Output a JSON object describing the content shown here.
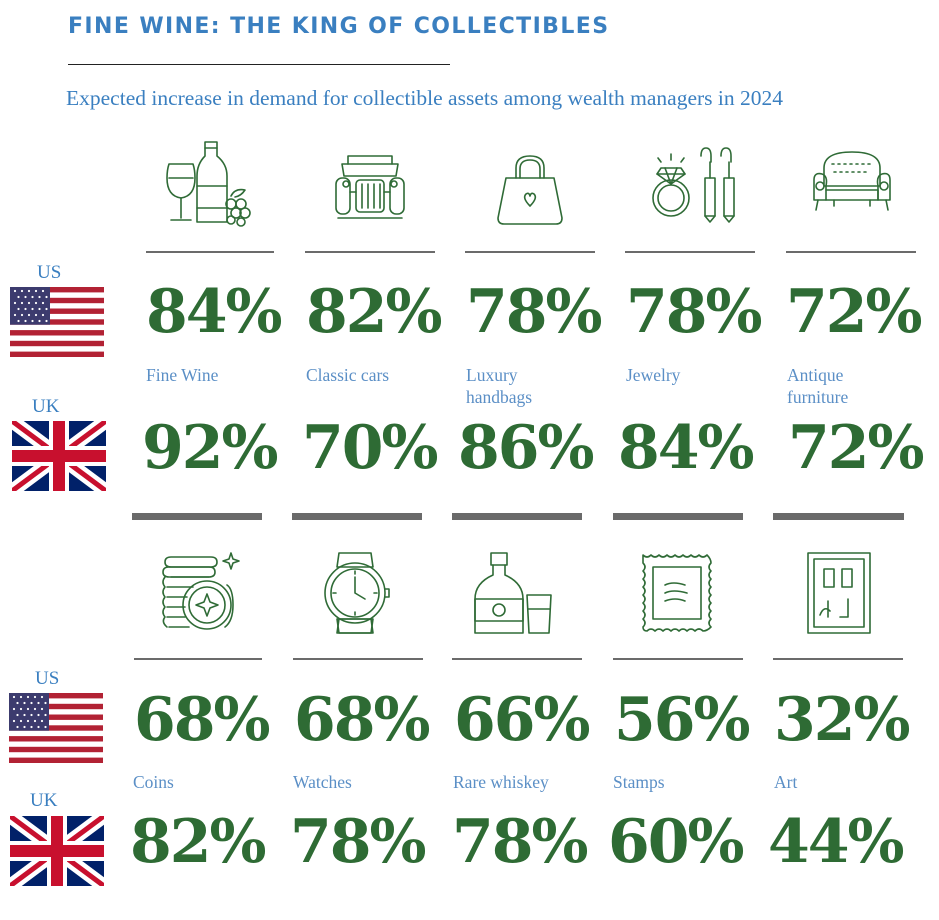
{
  "header": {
    "title": "FINE WINE: THE KING OF COLLECTIBLES",
    "subtitle": "Expected increase in demand for collectible assets among wealth managers in 2024"
  },
  "countries": {
    "us": "US",
    "uk": "UK"
  },
  "colors": {
    "green": "#2e6b34",
    "blue": "#3a7fc0",
    "rule": "#6a6a6a"
  },
  "top_row": [
    {
      "icon": "wine-icon",
      "us": "84%",
      "label": "Fine Wine",
      "uk": "92%"
    },
    {
      "icon": "classic-car-icon",
      "us": "82%",
      "label": "Classic cars",
      "uk": "70%"
    },
    {
      "icon": "handbag-icon",
      "us": "78%",
      "label": "Luxury handbags",
      "uk": "86%"
    },
    {
      "icon": "jewelry-icon",
      "us": "78%",
      "label": "Jewelry",
      "uk": "84%"
    },
    {
      "icon": "antique-sofa-icon",
      "us": "72%",
      "label": "Antique furniture",
      "uk": "72%"
    }
  ],
  "bottom_row": [
    {
      "icon": "coins-icon",
      "us": "68%",
      "label": "Coins",
      "uk": "82%"
    },
    {
      "icon": "watch-icon",
      "us": "68%",
      "label": "Watches",
      "uk": "78%"
    },
    {
      "icon": "whiskey-icon",
      "us": "66%",
      "label": "Rare whiskey",
      "uk": "78%"
    },
    {
      "icon": "stamp-icon",
      "us": "56%",
      "label": "Stamps",
      "uk": "60%"
    },
    {
      "icon": "art-frame-icon",
      "us": "32%",
      "label": "Art",
      "uk": "44%"
    }
  ]
}
